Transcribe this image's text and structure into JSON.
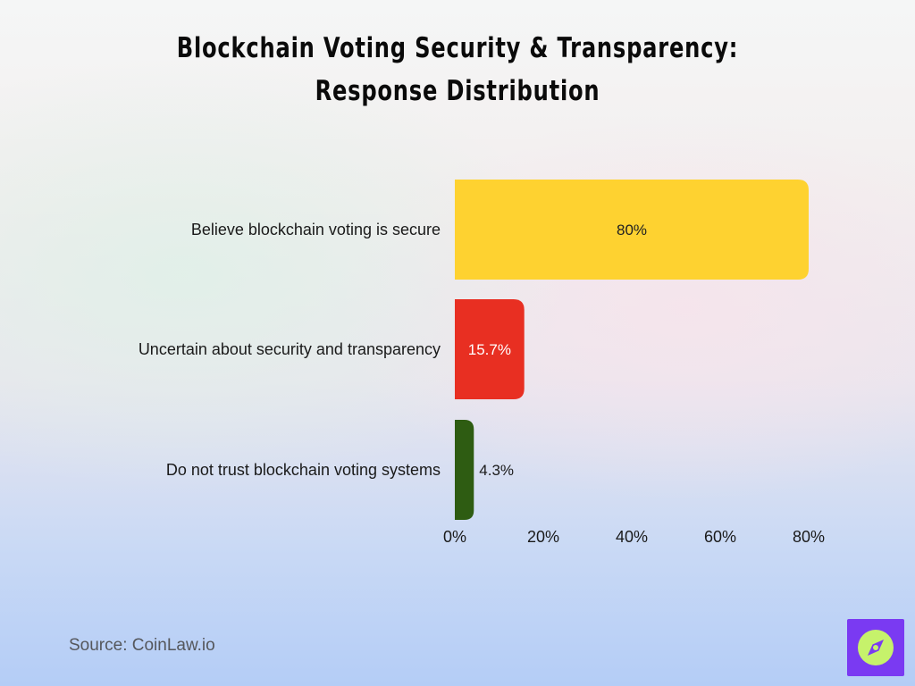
{
  "title": {
    "line1": "Blockchain Voting Security & Transparency:",
    "line2": "Response Distribution"
  },
  "source": "Source: CoinLaw.io",
  "logo_icon": "compass-icon",
  "colors": {
    "secure": "#fed230",
    "uncertain": "#e82f22",
    "distrust": "#2e5c12",
    "logo_bg": "#7a3af2",
    "logo_circle": "#c6f26b"
  },
  "chart_data": {
    "type": "bar",
    "orientation": "horizontal",
    "categories": [
      "Believe blockchain voting is secure",
      "Uncertain about security and transparency",
      "Do not trust blockchain voting systems"
    ],
    "values": [
      80,
      15.7,
      4.3
    ],
    "value_labels": [
      "80%",
      "15.7%",
      "4.3%"
    ],
    "xlim": [
      0,
      80
    ],
    "xticks": [
      "0%",
      "20%",
      "40%",
      "60%",
      "80%"
    ],
    "grid": false,
    "legend": "none"
  }
}
